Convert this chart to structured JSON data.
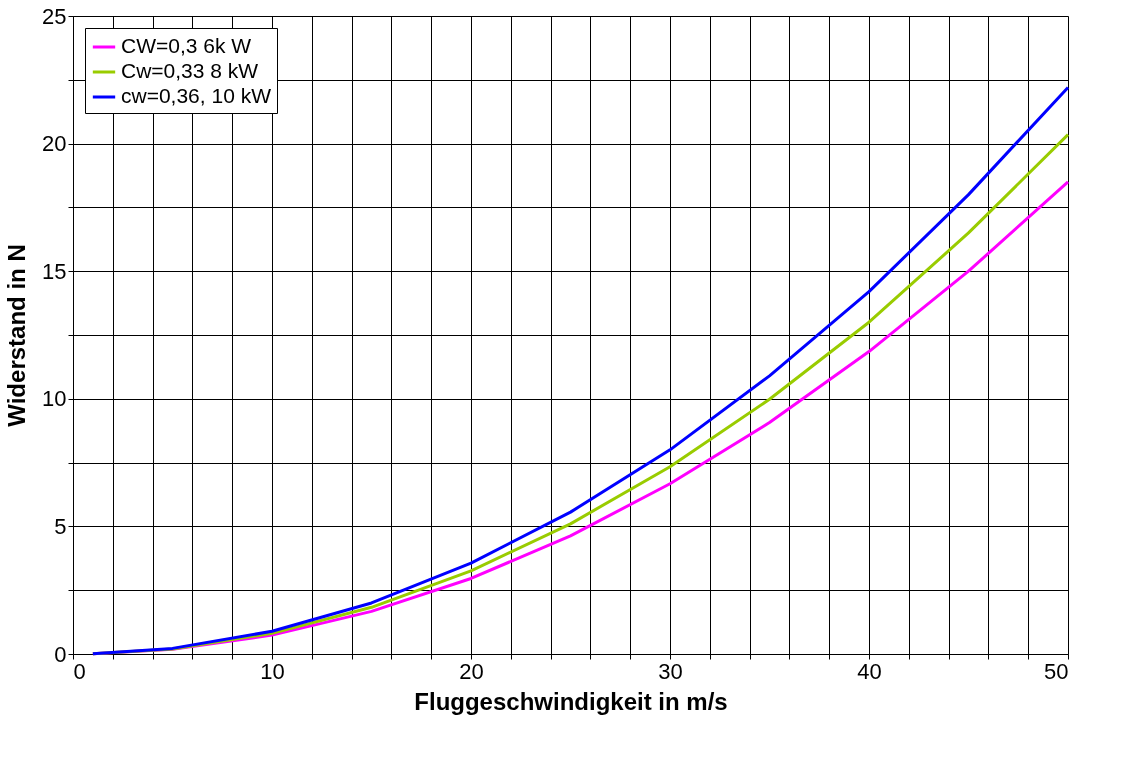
{
  "chart_data": {
    "type": "line",
    "xlabel": "Fluggeschwindigkeit in m/s",
    "ylabel": "Widerstand in N",
    "x": [
      1,
      5,
      10,
      15,
      20,
      25,
      30,
      35,
      40,
      45,
      50
    ],
    "series": [
      {
        "name": "CW=0,3 6k W",
        "color": "#ff00ff",
        "values": [
          0.01,
          0.19,
          0.74,
          1.67,
          2.96,
          4.63,
          6.67,
          9.07,
          11.85,
          15.0,
          18.5
        ]
      },
      {
        "name": "Cw=0,33 8 kW",
        "color": "#99cc00",
        "values": [
          0.01,
          0.2,
          0.81,
          1.83,
          3.26,
          5.1,
          7.34,
          9.98,
          13.0,
          16.5,
          20.35
        ]
      },
      {
        "name": "cw=0,36, 10 kW",
        "color": "#0000ff",
        "values": [
          0.01,
          0.22,
          0.89,
          2.0,
          3.56,
          5.56,
          8.0,
          10.9,
          14.2,
          18.0,
          22.2
        ]
      }
    ],
    "xlim": [
      0,
      50
    ],
    "xticks": [
      0,
      {
        "value": 2,
        "label": null
      },
      {
        "value": 4,
        "label": null
      },
      {
        "value": 6,
        "label": null
      },
      {
        "value": 8,
        "label": null
      },
      10,
      {
        "value": 12,
        "label": null
      },
      {
        "value": 14,
        "label": null
      },
      {
        "value": 16,
        "label": null
      },
      {
        "value": 18,
        "label": null
      },
      20,
      {
        "value": 22,
        "label": null
      },
      {
        "value": 24,
        "label": null
      },
      {
        "value": 26,
        "label": null
      },
      {
        "value": 28,
        "label": null
      },
      30,
      {
        "value": 32,
        "label": null
      },
      {
        "value": 34,
        "label": null
      },
      {
        "value": 36,
        "label": null
      },
      {
        "value": 38,
        "label": null
      },
      40,
      {
        "value": 42,
        "label": null
      },
      {
        "value": 44,
        "label": null
      },
      {
        "value": 46,
        "label": null
      },
      {
        "value": 48,
        "label": null
      },
      50
    ],
    "ylim": [
      0,
      25
    ],
    "yticks": [
      0,
      {
        "value": 2.5,
        "label": null
      },
      5,
      {
        "value": 7.5,
        "label": null
      },
      10,
      {
        "value": 12.5,
        "label": null
      },
      15,
      {
        "value": 17.5,
        "label": null
      },
      20,
      {
        "value": 22.5,
        "label": null
      },
      25
    ],
    "grid": true,
    "legend": "top left",
    "marker": "none",
    "line_style": "solid"
  }
}
